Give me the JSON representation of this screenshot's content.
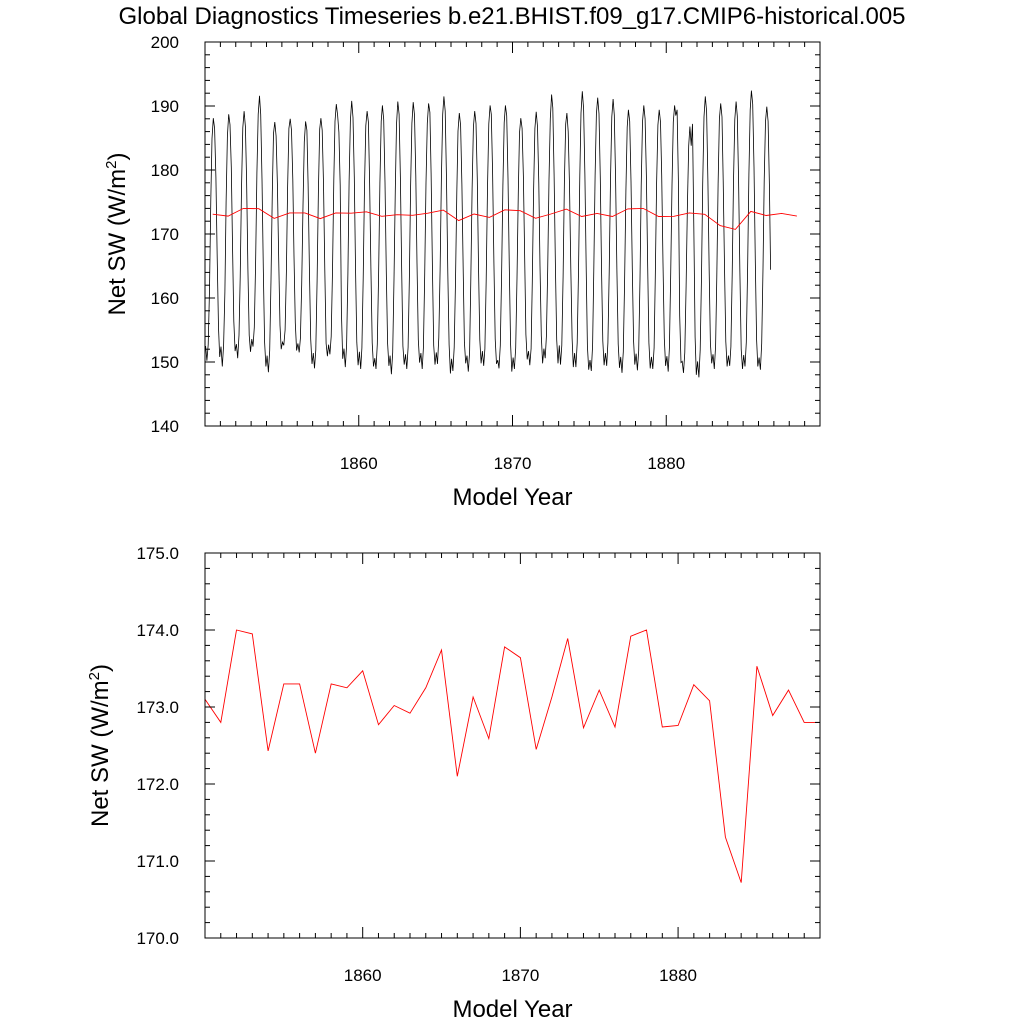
{
  "title": "Global Diagnostics Timeseries b.e21.BHIST.f09_g17.CMIP6-historical.005",
  "colors": {
    "monthly": "#000000",
    "annual": "#ff0000"
  },
  "chart_data": [
    {
      "type": "line",
      "xlabel": "Model Year",
      "ylabel": "Net SW (W/m",
      "ylabel_sup": "2",
      "ylabel_close": ")",
      "xlim": [
        1850,
        1890
      ],
      "ylim": [
        140,
        200
      ],
      "xticks": [
        1860,
        1870,
        1880
      ],
      "xtick_labels": [
        "1860",
        "1870",
        "1880"
      ],
      "yticks": [
        140,
        150,
        160,
        170,
        180,
        190,
        200
      ],
      "ytick_labels": [
        "140",
        "150",
        "160",
        "170",
        "180",
        "190",
        "200"
      ],
      "grid": false,
      "series": [
        {
          "key": "monthly",
          "color": "#000000",
          "x_start": 1850.0417,
          "x_step": 0.08333,
          "values": [
            152.5,
            150.2,
            152.7,
            161.3,
            175.3,
            184.9,
            188.1,
            186.5,
            178.9,
            166.3,
            155.4,
            150.8,
            152.4,
            149.3,
            152.6,
            161.0,
            175.0,
            185.3,
            188.7,
            187.1,
            180.4,
            168.4,
            156.4,
            151.7,
            152.8,
            150.6,
            154.2,
            163.2,
            177.1,
            186.6,
            189.2,
            186.8,
            178.4,
            164.5,
            154.2,
            151.6,
            153.6,
            152.4,
            155.4,
            165.4,
            179.5,
            188.7,
            191.6,
            188.7,
            178.6,
            164.6,
            153.1,
            149.3,
            151.0,
            148.4,
            151.8,
            162.8,
            176.4,
            185.7,
            187.5,
            185.3,
            177.8,
            166.1,
            155.7,
            152.0,
            153.1,
            152.6,
            155.0,
            164.2,
            177.2,
            186.5,
            188.0,
            186.2,
            178.6,
            166.5,
            156.1,
            151.8,
            152.9,
            151.5,
            153.7,
            162.1,
            174.4,
            184.4,
            187.6,
            186.2,
            177.8,
            164.6,
            153.6,
            149.7,
            151.4,
            149.0,
            151.9,
            162.7,
            176.7,
            186.4,
            188.1,
            186.2,
            177.9,
            164.4,
            152.9,
            150.9,
            152.7,
            151.2,
            154.0,
            164.2,
            178.3,
            187.6,
            190.3,
            188.6,
            185.9,
            177.6,
            157.9,
            150.5,
            152.1,
            149.2,
            152.6,
            163.8,
            178.2,
            187.8,
            190.8,
            188.2,
            178.9,
            164.9,
            153.1,
            149.5,
            151.6,
            148.9,
            152.2,
            163.1,
            177.4,
            186.9,
            189.2,
            187.5,
            178.2,
            164.7,
            153.0,
            149.3,
            150.6,
            148.9,
            152.8,
            163.6,
            177.9,
            187.6,
            190.1,
            187.9,
            178.1,
            164.0,
            152.9,
            149.4,
            151.0,
            148.1,
            151.5,
            162.9,
            176.9,
            187.1,
            190.7,
            188.7,
            178.7,
            164.2,
            152.5,
            149.6,
            151.2,
            148.9,
            152.3,
            163.4,
            177.4,
            187.3,
            190.6,
            188.6,
            179.1,
            165.4,
            153.5,
            149.9,
            151.4,
            148.9,
            152.2,
            163.6,
            178.0,
            187.3,
            190.4,
            189.0,
            179.5,
            165.0,
            152.6,
            149.6,
            151.5,
            149.7,
            153.8,
            164.3,
            178.8,
            188.7,
            191.5,
            189.2,
            178.5,
            164.0,
            152.7,
            148.2,
            150.5,
            148.6,
            152.3,
            162.6,
            176.4,
            186.1,
            188.9,
            187.0,
            177.7,
            164.3,
            153.1,
            149.8,
            151.0,
            148.5,
            151.5,
            162.7,
            177.0,
            186.7,
            189.2,
            187.3,
            178.5,
            165.0,
            153.5,
            149.8,
            151.7,
            149.4,
            152.1,
            162.9,
            177.2,
            187.2,
            190.1,
            188.7,
            179.6,
            165.6,
            153.6,
            149.7,
            150.3,
            149.0,
            152.6,
            163.6,
            177.6,
            187.4,
            190.1,
            188.5,
            178.7,
            164.8,
            152.7,
            148.5,
            150.7,
            148.9,
            152.2,
            163.1,
            176.5,
            185.8,
            188.1,
            186.5,
            178.9,
            166.1,
            154.3,
            150.4,
            151.7,
            149.5,
            152.1,
            162.6,
            176.8,
            186.5,
            189.1,
            186.8,
            177.9,
            165.0,
            154.1,
            149.8,
            152.1,
            150.6,
            154.0,
            164.5,
            178.5,
            188.0,
            191.8,
            189.7,
            179.2,
            165.1,
            153.5,
            149.8,
            152.6,
            149.6,
            152.6,
            163.3,
            178.2,
            187.2,
            188.9,
            186.0,
            177.6,
            164.7,
            153.7,
            149.2,
            151.4,
            149.2,
            153.0,
            164.1,
            179.0,
            188.9,
            192.3,
            189.6,
            179.2,
            164.6,
            152.5,
            148.8,
            150.3,
            148.6,
            152.6,
            164.4,
            179.1,
            188.8,
            191.3,
            188.8,
            178.7,
            164.8,
            153.3,
            149.5,
            151.4,
            149.4,
            153.0,
            164.0,
            178.5,
            188.3,
            191.1,
            188.6,
            178.5,
            164.3,
            152.8,
            149.1,
            150.8,
            148.3,
            151.6,
            162.6,
            176.7,
            186.7,
            189.4,
            187.6,
            178.3,
            164.6,
            153.2,
            149.6,
            151.3,
            148.7,
            151.8,
            162.9,
            177.5,
            187.5,
            190.1,
            188.0,
            178.9,
            164.8,
            153.0,
            149.0,
            150.8,
            148.9,
            152.2,
            163.4,
            177.9,
            187.0,
            189.4,
            187.5,
            179.2,
            165.4,
            153.7,
            149.4,
            150.9,
            148.5,
            152.2,
            163.7,
            177.6,
            187.5,
            190.1,
            188.5,
            189.4,
            178.2,
            157.2,
            149.9,
            150.1,
            148.3,
            151.5,
            161.8,
            174.4,
            183.8,
            186.8,
            183.8,
            187.2,
            171.3,
            153.9,
            148.0,
            150.1,
            147.6,
            151.9,
            163.4,
            177.8,
            188.3,
            191.5,
            189.2,
            178.3,
            164.0,
            152.9,
            149.8,
            151.2,
            148.9,
            152.5,
            163.3,
            177.8,
            188.0,
            190.4,
            188.3,
            178.3,
            164.9,
            153.2,
            149.3,
            151.0,
            149.4,
            152.4,
            163.7,
            178.3,
            187.9,
            190.7,
            188.4,
            178.2,
            163.9,
            152.0,
            148.9,
            151.1,
            149.3,
            153.1,
            164.4,
            179.3,
            189.4,
            192.4,
            190.3,
            180.5,
            165.8,
            153.5,
            149.3,
            150.7,
            148.8,
            152.9,
            164.6,
            178.3,
            187.6,
            189.9,
            187.6,
            177.7,
            164.4
          ]
        },
        {
          "key": "annual",
          "color": "#ff0000",
          "x": [
            1850.5,
            1851.5,
            1852.5,
            1853.5,
            1854.5,
            1855.5,
            1856.5,
            1857.5,
            1858.5,
            1859.5,
            1860.5,
            1861.5,
            1862.5,
            1863.5,
            1864.5,
            1865.5,
            1866.5,
            1867.5,
            1868.5,
            1869.5,
            1870.5,
            1871.5,
            1872.5,
            1873.5,
            1874.5,
            1875.5,
            1876.5,
            1877.5,
            1878.5,
            1879.5,
            1880.5,
            1881.5,
            1882.5,
            1883.5,
            1884.5,
            1885.5,
            1886.5,
            1887.5,
            1888.5
          ],
          "values": [
            173.1,
            172.8,
            174.0,
            173.95,
            172.43,
            173.3,
            173.3,
            172.4,
            173.3,
            173.25,
            173.47,
            172.77,
            173.02,
            172.92,
            173.25,
            173.74,
            172.1,
            173.13,
            172.59,
            173.78,
            173.64,
            172.45,
            173.13,
            173.89,
            172.73,
            173.22,
            172.74,
            173.92,
            174.0,
            172.74,
            172.76,
            173.29,
            173.08,
            171.31,
            170.72,
            173.53,
            172.89,
            173.22,
            172.8
          ]
        }
      ]
    },
    {
      "type": "line",
      "xlabel": "Model Year",
      "ylabel": "Net SW (W/m",
      "ylabel_sup": "2",
      "ylabel_close": ")",
      "xlim": [
        1850,
        1889
      ],
      "ylim": [
        170,
        175
      ],
      "xticks": [
        1860,
        1870,
        1880
      ],
      "xtick_labels": [
        "1860",
        "1870",
        "1880"
      ],
      "yticks": [
        170,
        171,
        172,
        173,
        174,
        175
      ],
      "ytick_labels": [
        "170.0",
        "171.0",
        "172.0",
        "173.0",
        "174.0",
        "175.0"
      ],
      "grid": false,
      "series": [
        {
          "key": "annual",
          "color": "#ff0000",
          "x": [
            1850.0,
            1851.0,
            1852.0,
            1853.0,
            1854.0,
            1855.0,
            1856.0,
            1857.0,
            1858.0,
            1859.0,
            1860.0,
            1861.0,
            1862.0,
            1863.0,
            1864.0,
            1865.0,
            1866.0,
            1867.0,
            1868.0,
            1869.0,
            1870.0,
            1871.0,
            1872.0,
            1873.0,
            1874.0,
            1875.0,
            1876.0,
            1877.0,
            1878.0,
            1879.0,
            1880.0,
            1881.0,
            1882.0,
            1883.0,
            1884.0,
            1885.0,
            1886.0,
            1887.0,
            1888.0,
            1889.0
          ],
          "values": [
            173.1,
            172.8,
            174.0,
            173.95,
            172.43,
            173.3,
            173.3,
            172.4,
            173.3,
            173.25,
            173.47,
            172.77,
            173.02,
            172.92,
            173.25,
            173.74,
            172.1,
            173.13,
            172.59,
            173.78,
            173.64,
            172.45,
            173.13,
            173.89,
            172.73,
            173.22,
            172.74,
            173.92,
            174.0,
            172.74,
            172.76,
            173.29,
            173.08,
            171.31,
            170.72,
            173.53,
            172.89,
            173.22,
            172.8,
            172.8
          ]
        }
      ]
    }
  ]
}
